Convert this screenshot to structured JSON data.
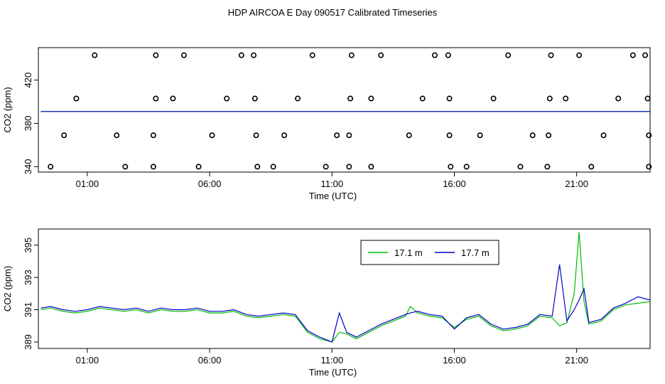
{
  "title": "HDP AIRCOA E  Day 090517  Calibrated Timeseries",
  "colors": {
    "green": "#00bb00",
    "blue": "#0000cc",
    "frame": "#000000"
  },
  "chart_data": [
    {
      "type": "scatter+line",
      "xlabel": "Time (UTC)",
      "ylabel": "CO2 (ppm)",
      "x_tick_labels": [
        "01:00",
        "06:00",
        "11:00",
        "16:00",
        "21:00"
      ],
      "x_ticks_hours": [
        1,
        6,
        11,
        16,
        21
      ],
      "xlim_hours": [
        -1.0,
        24.0
      ],
      "y_ticks": [
        340,
        380,
        420
      ],
      "ylim": [
        335,
        450
      ],
      "calibration_points": [
        {
          "t": 1.3,
          "v": 443
        },
        {
          "t": 3.8,
          "v": 443
        },
        {
          "t": 4.95,
          "v": 443
        },
        {
          "t": 7.3,
          "v": 443
        },
        {
          "t": 7.8,
          "v": 443
        },
        {
          "t": 10.2,
          "v": 443
        },
        {
          "t": 11.8,
          "v": 443
        },
        {
          "t": 13.0,
          "v": 443
        },
        {
          "t": 15.2,
          "v": 443
        },
        {
          "t": 15.75,
          "v": 443
        },
        {
          "t": 18.2,
          "v": 443
        },
        {
          "t": 19.95,
          "v": 443
        },
        {
          "t": 21.1,
          "v": 443
        },
        {
          "t": 23.3,
          "v": 443
        },
        {
          "t": 23.8,
          "v": 443
        },
        {
          "t": 0.55,
          "v": 403
        },
        {
          "t": 3.8,
          "v": 403
        },
        {
          "t": 4.5,
          "v": 403
        },
        {
          "t": 6.7,
          "v": 403
        },
        {
          "t": 7.85,
          "v": 403
        },
        {
          "t": 9.6,
          "v": 403
        },
        {
          "t": 11.75,
          "v": 403
        },
        {
          "t": 12.6,
          "v": 403
        },
        {
          "t": 14.7,
          "v": 403
        },
        {
          "t": 15.8,
          "v": 403
        },
        {
          "t": 17.6,
          "v": 403
        },
        {
          "t": 19.9,
          "v": 403
        },
        {
          "t": 20.55,
          "v": 403
        },
        {
          "t": 22.7,
          "v": 403
        },
        {
          "t": 23.9,
          "v": 403
        },
        {
          "t": 0.05,
          "v": 369
        },
        {
          "t": 2.2,
          "v": 369
        },
        {
          "t": 3.7,
          "v": 369
        },
        {
          "t": 6.1,
          "v": 369
        },
        {
          "t": 7.9,
          "v": 369
        },
        {
          "t": 9.05,
          "v": 369
        },
        {
          "t": 11.2,
          "v": 369
        },
        {
          "t": 11.7,
          "v": 369
        },
        {
          "t": 14.15,
          "v": 369
        },
        {
          "t": 15.8,
          "v": 369
        },
        {
          "t": 17.05,
          "v": 369
        },
        {
          "t": 19.2,
          "v": 369
        },
        {
          "t": 19.85,
          "v": 369
        },
        {
          "t": 22.1,
          "v": 369
        },
        {
          "t": 23.95,
          "v": 369
        },
        {
          "t": -0.5,
          "v": 340
        },
        {
          "t": 2.55,
          "v": 340
        },
        {
          "t": 3.7,
          "v": 340
        },
        {
          "t": 5.55,
          "v": 340
        },
        {
          "t": 7.95,
          "v": 340
        },
        {
          "t": 8.6,
          "v": 340
        },
        {
          "t": 10.75,
          "v": 340
        },
        {
          "t": 11.7,
          "v": 340
        },
        {
          "t": 12.6,
          "v": 340
        },
        {
          "t": 15.85,
          "v": 340
        },
        {
          "t": 16.5,
          "v": 340
        },
        {
          "t": 18.7,
          "v": 340
        },
        {
          "t": 19.8,
          "v": 340
        },
        {
          "t": 21.6,
          "v": 340
        },
        {
          "t": 23.95,
          "v": 340
        }
      ],
      "series": [
        {
          "color": "#00bb00",
          "x": [
            -0.9,
            24.0
          ],
          "y": [
            391,
            391
          ]
        },
        {
          "color": "#0000cc",
          "x": [
            -0.9,
            24.0
          ],
          "y": [
            391,
            391
          ]
        }
      ]
    },
    {
      "type": "line",
      "xlabel": "Time (UTC)",
      "ylabel": "CO2 (ppm)",
      "x_tick_labels": [
        "01:00",
        "06:00",
        "11:00",
        "16:00",
        "21:00"
      ],
      "x_ticks_hours": [
        1,
        6,
        11,
        16,
        21
      ],
      "xlim_hours": [
        -1.0,
        24.0
      ],
      "y_ticks": [
        389,
        391,
        393,
        395
      ],
      "ylim": [
        388.6,
        396.0
      ],
      "legend_placement": "top-center",
      "series": [
        {
          "name": "17.1 m",
          "color": "#00bb00",
          "x": [
            -0.9,
            -0.5,
            0,
            0.5,
            1,
            1.5,
            2,
            2.5,
            3,
            3.5,
            4,
            4.5,
            5,
            5.5,
            6,
            6.5,
            7,
            7.5,
            8,
            8.5,
            9,
            9.5,
            10,
            10.5,
            11,
            11.3,
            11.6,
            12,
            12.5,
            13,
            13.5,
            14,
            14.2,
            14.5,
            15,
            15.5,
            16,
            16.5,
            17,
            17.5,
            18,
            18.5,
            19,
            19.5,
            20,
            20.3,
            20.6,
            20.9,
            21.1,
            21.3,
            21.5,
            22,
            22.5,
            23,
            23.5,
            24
          ],
          "y": [
            391.0,
            391.1,
            390.9,
            390.8,
            390.9,
            391.1,
            391.0,
            390.9,
            391.0,
            390.8,
            391.0,
            390.9,
            390.9,
            391.0,
            390.8,
            390.8,
            390.9,
            390.6,
            390.5,
            390.6,
            390.7,
            390.6,
            389.6,
            389.2,
            389.0,
            389.6,
            389.5,
            389.2,
            389.6,
            390.0,
            390.3,
            390.6,
            391.2,
            390.8,
            390.6,
            390.5,
            389.9,
            390.4,
            390.6,
            390.0,
            389.7,
            389.8,
            390.0,
            390.6,
            390.5,
            390.0,
            390.2,
            392.0,
            395.8,
            391.5,
            390.1,
            390.3,
            391.0,
            391.3,
            391.4,
            391.5
          ]
        },
        {
          "name": "17.7 m",
          "color": "#0000cc",
          "x": [
            -0.9,
            -0.5,
            0,
            0.5,
            1,
            1.5,
            2,
            2.5,
            3,
            3.5,
            4,
            4.5,
            5,
            5.5,
            6,
            6.5,
            7,
            7.5,
            8,
            8.5,
            9,
            9.5,
            10,
            10.5,
            11,
            11.3,
            11.6,
            12,
            12.5,
            13,
            13.5,
            14,
            14.2,
            14.5,
            15,
            15.5,
            16,
            16.5,
            17,
            17.5,
            18,
            18.5,
            19,
            19.5,
            20,
            20.3,
            20.6,
            20.9,
            21.1,
            21.3,
            21.5,
            22,
            22.5,
            23,
            23.5,
            24
          ],
          "y": [
            391.1,
            391.2,
            391.0,
            390.9,
            391.0,
            391.2,
            391.1,
            391.0,
            391.1,
            390.9,
            391.1,
            391.0,
            391.0,
            391.1,
            390.9,
            390.9,
            391.0,
            390.7,
            390.6,
            390.7,
            390.8,
            390.7,
            389.7,
            389.3,
            389.0,
            390.8,
            389.6,
            389.3,
            389.7,
            390.1,
            390.4,
            390.7,
            390.8,
            390.9,
            390.7,
            390.6,
            389.8,
            390.5,
            390.7,
            390.1,
            389.8,
            389.9,
            390.1,
            390.7,
            390.6,
            393.8,
            390.3,
            391.0,
            391.6,
            392.3,
            390.2,
            390.4,
            391.1,
            391.4,
            391.8,
            391.6
          ]
        }
      ]
    }
  ]
}
